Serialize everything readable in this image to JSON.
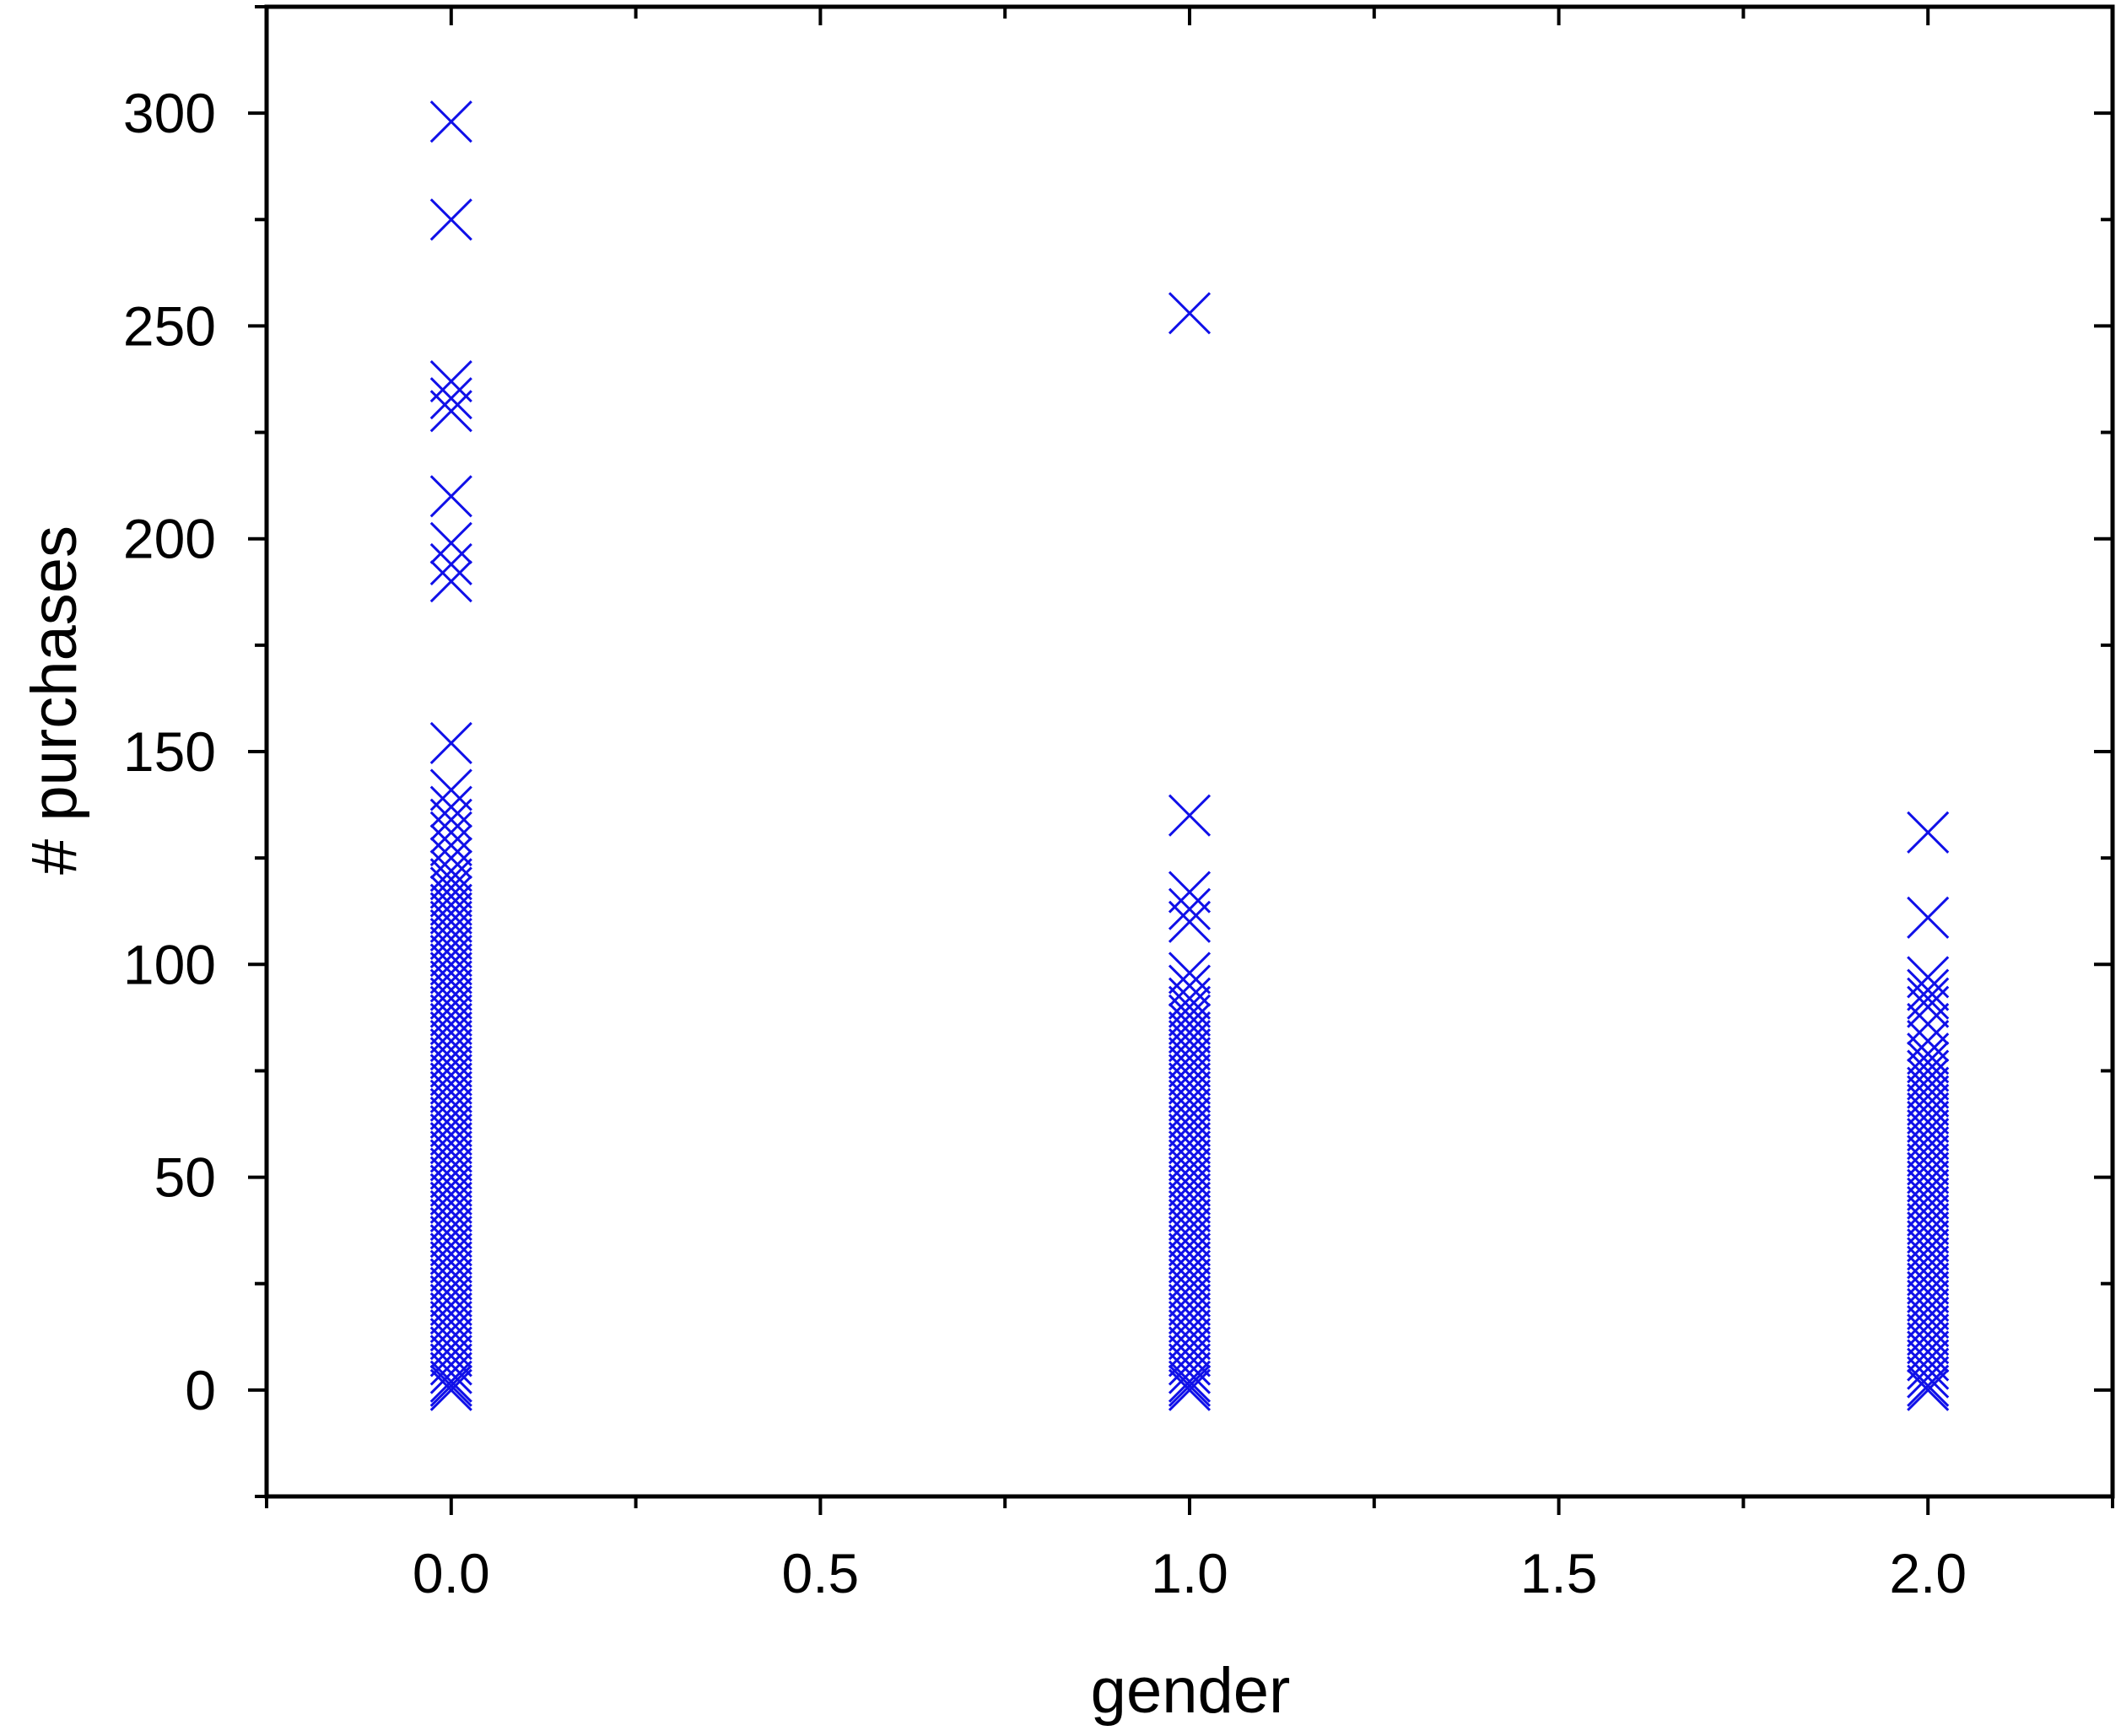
{
  "chart_data": {
    "type": "scatter",
    "xlabel": "gender",
    "ylabel": "# purchases",
    "xlim": [
      -0.25,
      2.25
    ],
    "ylim": [
      -25,
      325
    ],
    "xticks": [
      0.0,
      0.5,
      1.0,
      1.5,
      2.0
    ],
    "xtick_labels": [
      "0.0",
      "0.5",
      "1.0",
      "1.5",
      "2.0"
    ],
    "yticks": [
      0,
      50,
      100,
      150,
      200,
      250,
      300
    ],
    "ytick_labels": [
      "0",
      "50",
      "100",
      "150",
      "200",
      "250",
      "300"
    ],
    "grid": false,
    "marker": "x",
    "marker_color": "#1010e8",
    "series": [
      {
        "x_value": 0,
        "y": [
          298,
          275,
          237,
          233,
          230,
          210,
          199,
          194,
          190,
          152,
          141,
          137,
          134,
          131,
          128,
          125,
          122,
          120,
          118,
          116,
          114,
          112,
          110,
          108,
          106,
          104,
          102,
          100,
          98,
          96,
          94,
          92,
          90,
          88,
          86,
          84,
          82,
          80,
          78,
          76,
          74,
          72,
          70,
          68,
          66,
          64,
          62,
          60,
          58,
          56,
          54,
          52,
          50,
          48,
          46,
          44,
          42,
          40,
          38,
          36,
          34,
          32,
          30,
          28,
          26,
          24,
          22,
          20,
          18,
          16,
          14,
          12,
          10,
          8,
          6,
          4,
          2,
          1,
          0
        ]
      },
      {
        "x_value": 1,
        "y": [
          253,
          135,
          117,
          113,
          110,
          98,
          95,
          92,
          90,
          88,
          86,
          84,
          82,
          80,
          78,
          76,
          74,
          72,
          70,
          68,
          66,
          64,
          62,
          60,
          58,
          56,
          54,
          52,
          50,
          48,
          46,
          44,
          42,
          40,
          38,
          36,
          34,
          32,
          30,
          28,
          26,
          24,
          22,
          20,
          18,
          16,
          14,
          12,
          10,
          8,
          6,
          4,
          2,
          1,
          0
        ]
      },
      {
        "x_value": 2,
        "y": [
          131,
          111,
          97,
          94,
          92,
          90,
          86,
          82,
          79,
          77,
          75,
          73,
          71,
          69,
          67,
          65,
          63,
          61,
          59,
          57,
          55,
          53,
          51,
          49,
          47,
          45,
          43,
          41,
          39,
          37,
          35,
          33,
          31,
          29,
          27,
          25,
          23,
          21,
          19,
          17,
          15,
          13,
          11,
          9,
          7,
          5,
          3,
          1,
          0
        ]
      }
    ]
  }
}
